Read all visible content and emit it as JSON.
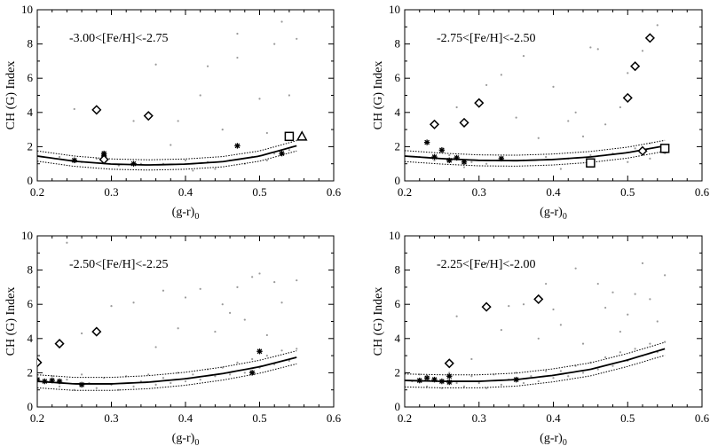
{
  "chart_data": [
    {
      "type": "scatter",
      "annotation": "-3.00<[Fe/H]<-2.75",
      "xlabel": "(g-r)",
      "xlabel_sub": "0",
      "ylabel": "CH (G) Index",
      "xlim": [
        0.2,
        0.6
      ],
      "ylim": [
        0,
        10
      ],
      "xticks": [
        "0.2",
        "0.3",
        "0.4",
        "0.5",
        "0.6"
      ],
      "yticks": [
        "0",
        "2",
        "4",
        "6",
        "8",
        "10"
      ],
      "fit": {
        "x": [
          0.2,
          0.25,
          0.3,
          0.35,
          0.4,
          0.45,
          0.5,
          0.55
        ],
        "y": [
          1.45,
          1.15,
          0.98,
          0.93,
          0.98,
          1.12,
          1.45,
          2.05
        ],
        "band": 0.3
      },
      "field": [
        [
          0.23,
          1.4
        ],
        [
          0.26,
          1.1
        ],
        [
          0.28,
          1.3
        ],
        [
          0.31,
          0.9
        ],
        [
          0.34,
          1.0
        ],
        [
          0.37,
          1.0
        ],
        [
          0.4,
          1.2
        ],
        [
          0.43,
          1.1
        ],
        [
          0.46,
          1.2
        ],
        [
          0.49,
          1.4
        ],
        [
          0.52,
          1.6
        ],
        [
          0.54,
          1.8
        ],
        [
          0.25,
          4.2
        ],
        [
          0.33,
          3.5
        ],
        [
          0.36,
          6.8
        ],
        [
          0.43,
          6.7
        ],
        [
          0.47,
          7.2
        ],
        [
          0.5,
          4.8
        ],
        [
          0.52,
          8.0
        ],
        [
          0.53,
          9.3
        ],
        [
          0.54,
          5.0
        ],
        [
          0.55,
          8.3
        ],
        [
          0.45,
          3.0
        ],
        [
          0.38,
          2.1
        ],
        [
          0.41,
          0.6
        ],
        [
          0.44,
          0.7
        ],
        [
          0.48,
          1.0
        ],
        [
          0.51,
          1.2
        ],
        [
          0.39,
          3.5
        ],
        [
          0.42,
          5.0
        ],
        [
          0.47,
          8.6
        ],
        [
          0.51,
          2.8
        ]
      ],
      "stars": [
        [
          0.25,
          1.2
        ],
        [
          0.29,
          1.6
        ],
        [
          0.29,
          1.45
        ],
        [
          0.33,
          1.0
        ],
        [
          0.47,
          2.05
        ],
        [
          0.53,
          1.6
        ]
      ],
      "diamonds": [
        [
          0.28,
          4.15
        ],
        [
          0.35,
          3.8
        ],
        [
          0.29,
          1.25
        ]
      ],
      "squares": [
        [
          0.54,
          2.6
        ]
      ],
      "triangles": [
        [
          0.55,
          2.6
        ]
      ]
    },
    {
      "type": "scatter",
      "annotation": "-2.75<[Fe/H]<-2.50",
      "xlabel": "(g-r)",
      "xlabel_sub": "0",
      "ylabel": "CH (G) Index",
      "xlim": [
        0.2,
        0.6
      ],
      "ylim": [
        0,
        10
      ],
      "xticks": [
        "0.2",
        "0.3",
        "0.4",
        "0.5",
        "0.6"
      ],
      "yticks": [
        "0",
        "2",
        "4",
        "6",
        "8",
        "10"
      ],
      "fit": {
        "x": [
          0.2,
          0.25,
          0.3,
          0.35,
          0.4,
          0.45,
          0.5,
          0.55
        ],
        "y": [
          1.45,
          1.3,
          1.2,
          1.18,
          1.25,
          1.4,
          1.65,
          2.05
        ],
        "band": 0.32
      },
      "field": [
        [
          0.22,
          1.4
        ],
        [
          0.24,
          1.2
        ],
        [
          0.26,
          1.5
        ],
        [
          0.29,
          1.1
        ],
        [
          0.31,
          1.0
        ],
        [
          0.33,
          1.3
        ],
        [
          0.36,
          1.2
        ],
        [
          0.39,
          1.4
        ],
        [
          0.42,
          1.3
        ],
        [
          0.45,
          1.5
        ],
        [
          0.48,
          1.6
        ],
        [
          0.51,
          1.9
        ],
        [
          0.53,
          2.2
        ],
        [
          0.3,
          4.7
        ],
        [
          0.31,
          5.6
        ],
        [
          0.33,
          6.2
        ],
        [
          0.36,
          7.3
        ],
        [
          0.4,
          5.5
        ],
        [
          0.43,
          4.0
        ],
        [
          0.45,
          7.8
        ],
        [
          0.46,
          7.7
        ],
        [
          0.49,
          4.3
        ],
        [
          0.5,
          6.3
        ],
        [
          0.52,
          7.6
        ],
        [
          0.54,
          9.1
        ],
        [
          0.47,
          3.3
        ],
        [
          0.27,
          4.3
        ],
        [
          0.35,
          3.7
        ],
        [
          0.38,
          2.5
        ],
        [
          0.44,
          2.6
        ],
        [
          0.41,
          0.7
        ],
        [
          0.28,
          0.8
        ],
        [
          0.5,
          1.1
        ],
        [
          0.53,
          1.3
        ],
        [
          0.42,
          3.5
        ]
      ],
      "stars": [
        [
          0.23,
          2.25
        ],
        [
          0.24,
          1.4
        ],
        [
          0.25,
          1.8
        ],
        [
          0.26,
          1.2
        ],
        [
          0.27,
          1.35
        ],
        [
          0.28,
          1.1
        ],
        [
          0.33,
          1.3
        ],
        [
          0.55,
          1.75
        ]
      ],
      "diamonds": [
        [
          0.24,
          3.3
        ],
        [
          0.28,
          3.4
        ],
        [
          0.3,
          4.55
        ],
        [
          0.5,
          4.85
        ],
        [
          0.51,
          6.7
        ],
        [
          0.53,
          8.35
        ],
        [
          0.52,
          1.75
        ]
      ],
      "squares": [
        [
          0.45,
          1.05
        ],
        [
          0.55,
          1.9
        ]
      ],
      "triangles": []
    },
    {
      "type": "scatter",
      "annotation": "-2.50<[Fe/H]<-2.25",
      "xlabel": "(g-r)",
      "xlabel_sub": "0",
      "ylabel": "CH (G) Index",
      "xlim": [
        0.2,
        0.6
      ],
      "ylim": [
        0,
        10
      ],
      "xticks": [
        "0.2",
        "0.3",
        "0.4",
        "0.5",
        "0.6"
      ],
      "yticks": [
        "0",
        "2",
        "4",
        "6",
        "8",
        "10"
      ],
      "fit": {
        "x": [
          0.2,
          0.25,
          0.3,
          0.35,
          0.4,
          0.45,
          0.5,
          0.55
        ],
        "y": [
          1.5,
          1.35,
          1.35,
          1.45,
          1.65,
          1.95,
          2.35,
          2.9
        ],
        "band": 0.38
      },
      "field": [
        [
          0.21,
          1.5
        ],
        [
          0.22,
          1.8
        ],
        [
          0.23,
          1.2
        ],
        [
          0.24,
          1.6
        ],
        [
          0.25,
          1.0
        ],
        [
          0.26,
          1.9
        ],
        [
          0.27,
          1.4
        ],
        [
          0.28,
          1.1
        ],
        [
          0.29,
          1.7
        ],
        [
          0.3,
          1.3
        ],
        [
          0.31,
          1.0
        ],
        [
          0.32,
          1.8
        ],
        [
          0.33,
          1.2
        ],
        [
          0.34,
          1.5
        ],
        [
          0.35,
          1.9
        ],
        [
          0.36,
          1.3
        ],
        [
          0.37,
          1.7
        ],
        [
          0.38,
          1.4
        ],
        [
          0.39,
          2.0
        ],
        [
          0.4,
          1.5
        ],
        [
          0.41,
          1.9
        ],
        [
          0.42,
          1.6
        ],
        [
          0.43,
          2.2
        ],
        [
          0.44,
          1.8
        ],
        [
          0.45,
          2.3
        ],
        [
          0.46,
          1.9
        ],
        [
          0.47,
          2.6
        ],
        [
          0.48,
          2.0
        ],
        [
          0.49,
          2.8
        ],
        [
          0.5,
          2.3
        ],
        [
          0.51,
          3.0
        ],
        [
          0.52,
          2.5
        ],
        [
          0.53,
          3.3
        ],
        [
          0.54,
          2.7
        ],
        [
          0.55,
          3.4
        ],
        [
          0.24,
          9.6
        ],
        [
          0.3,
          5.9
        ],
        [
          0.33,
          6.1
        ],
        [
          0.37,
          6.8
        ],
        [
          0.4,
          6.4
        ],
        [
          0.42,
          6.9
        ],
        [
          0.45,
          6.0
        ],
        [
          0.47,
          7.0
        ],
        [
          0.49,
          7.6
        ],
        [
          0.5,
          7.8
        ],
        [
          0.52,
          7.3
        ],
        [
          0.53,
          6.1
        ],
        [
          0.55,
          7.4
        ],
        [
          0.44,
          4.4
        ],
        [
          0.36,
          3.5
        ],
        [
          0.48,
          5.1
        ],
        [
          0.51,
          4.2
        ],
        [
          0.26,
          4.3
        ],
        [
          0.39,
          4.6
        ],
        [
          0.46,
          5.5
        ]
      ],
      "stars": [
        [
          0.2,
          1.6
        ],
        [
          0.21,
          1.5
        ],
        [
          0.22,
          1.55
        ],
        [
          0.23,
          1.5
        ],
        [
          0.26,
          1.3
        ],
        [
          0.5,
          3.25
        ],
        [
          0.49,
          2.0
        ]
      ],
      "diamonds": [
        [
          0.2,
          2.6
        ],
        [
          0.23,
          3.7
        ],
        [
          0.28,
          4.4
        ]
      ],
      "squares": [],
      "triangles": []
    },
    {
      "type": "scatter",
      "annotation": "-2.25<[Fe/H]<-2.00",
      "xlabel": "(g-r)",
      "xlabel_sub": "0",
      "ylabel": "CH (G) Index",
      "xlim": [
        0.2,
        0.6
      ],
      "ylim": [
        0,
        10
      ],
      "xticks": [
        "0.2",
        "0.3",
        "0.4",
        "0.5",
        "0.6"
      ],
      "yticks": [
        "0",
        "2",
        "4",
        "6",
        "8",
        "10"
      ],
      "fit": {
        "x": [
          0.2,
          0.25,
          0.3,
          0.35,
          0.4,
          0.45,
          0.5,
          0.55
        ],
        "y": [
          1.55,
          1.5,
          1.5,
          1.6,
          1.85,
          2.2,
          2.75,
          3.4
        ],
        "band": 0.38
      },
      "field": [
        [
          0.21,
          1.5
        ],
        [
          0.22,
          1.9
        ],
        [
          0.23,
          1.2
        ],
        [
          0.24,
          1.7
        ],
        [
          0.25,
          1.1
        ],
        [
          0.26,
          2.0
        ],
        [
          0.27,
          1.4
        ],
        [
          0.28,
          1.2
        ],
        [
          0.29,
          1.8
        ],
        [
          0.3,
          1.4
        ],
        [
          0.31,
          1.1
        ],
        [
          0.32,
          1.9
        ],
        [
          0.33,
          1.3
        ],
        [
          0.34,
          1.6
        ],
        [
          0.35,
          2.0
        ],
        [
          0.36,
          1.4
        ],
        [
          0.37,
          1.8
        ],
        [
          0.38,
          1.5
        ],
        [
          0.39,
          2.1
        ],
        [
          0.4,
          1.7
        ],
        [
          0.41,
          2.1
        ],
        [
          0.42,
          1.8
        ],
        [
          0.43,
          2.4
        ],
        [
          0.44,
          2.0
        ],
        [
          0.45,
          2.6
        ],
        [
          0.46,
          2.2
        ],
        [
          0.47,
          2.9
        ],
        [
          0.48,
          2.4
        ],
        [
          0.49,
          3.2
        ],
        [
          0.5,
          2.7
        ],
        [
          0.51,
          3.4
        ],
        [
          0.52,
          3.0
        ],
        [
          0.53,
          3.7
        ],
        [
          0.54,
          3.2
        ],
        [
          0.55,
          3.8
        ],
        [
          0.31,
          8.4
        ],
        [
          0.36,
          6.0
        ],
        [
          0.4,
          5.7
        ],
        [
          0.43,
          8.1
        ],
        [
          0.46,
          7.2
        ],
        [
          0.48,
          6.7
        ],
        [
          0.5,
          5.4
        ],
        [
          0.52,
          8.4
        ],
        [
          0.53,
          6.3
        ],
        [
          0.55,
          7.7
        ],
        [
          0.27,
          5.3
        ],
        [
          0.29,
          2.8
        ],
        [
          0.33,
          4.5
        ],
        [
          0.38,
          4.0
        ],
        [
          0.41,
          4.8
        ],
        [
          0.44,
          3.7
        ],
        [
          0.47,
          5.8
        ],
        [
          0.49,
          4.4
        ],
        [
          0.51,
          6.6
        ],
        [
          0.54,
          5.0
        ],
        [
          0.39,
          7.2
        ],
        [
          0.34,
          5.9
        ]
      ],
      "stars": [
        [
          0.22,
          1.55
        ],
        [
          0.23,
          1.7
        ],
        [
          0.24,
          1.6
        ],
        [
          0.25,
          1.5
        ],
        [
          0.26,
          1.45
        ],
        [
          0.26,
          1.8
        ],
        [
          0.35,
          1.6
        ]
      ],
      "diamonds": [
        [
          0.26,
          2.55
        ],
        [
          0.31,
          5.85
        ],
        [
          0.38,
          6.3
        ]
      ],
      "squares": [],
      "triangles": []
    }
  ]
}
